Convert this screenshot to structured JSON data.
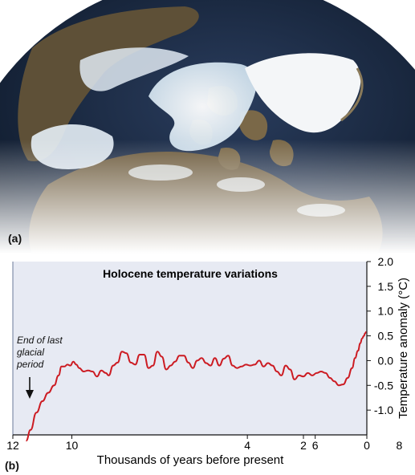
{
  "panel_a": {
    "label": "(a)"
  },
  "panel_b": {
    "label": "(b)"
  },
  "colors": {
    "ocean": "#1a2a44",
    "land": "#6b5a3c",
    "ice": "#eef3f8",
    "plot_bg": "#e7eaf3",
    "line": "#cc1b22"
  },
  "chart_data": {
    "type": "line",
    "title": "Holocene temperature variations",
    "xlabel": "Thousands of years before present",
    "ylabel": "Temperature anomaly (°C)",
    "x_reversed": true,
    "xlim": [
      12,
      0
    ],
    "ylim": [
      -1.5,
      2.0
    ],
    "x_ticks": [
      "12",
      "10",
      "4",
      "2",
      "6",
      "0",
      "8"
    ],
    "y_ticks": [
      "2.0",
      "1.5",
      "1.0",
      "0.5",
      "0.0",
      "-0.5",
      "-1.0"
    ],
    "annotation": {
      "text": [
        "End of last",
        "glacial",
        "period"
      ]
    },
    "series": [
      {
        "x": [
          11.55,
          11.4,
          11.2,
          11.0,
          10.8,
          10.6,
          10.45,
          10.35,
          10.25,
          10.15,
          10.05,
          9.95,
          9.85,
          9.75,
          9.6,
          9.45,
          9.3,
          9.15,
          9.0,
          8.85,
          8.75,
          8.6,
          8.45,
          8.3,
          8.15,
          8.0,
          7.85,
          7.7,
          7.55,
          7.4,
          7.25,
          7.1,
          6.95,
          6.8,
          6.65,
          6.5,
          6.35,
          6.2,
          6.05,
          5.9,
          5.75,
          5.6,
          5.45,
          5.3,
          5.15,
          5.0,
          4.85,
          4.7,
          4.55,
          4.4,
          4.25,
          4.1,
          3.95,
          3.8,
          3.65,
          3.5,
          3.35,
          3.2,
          3.05,
          2.9,
          2.75,
          2.6,
          2.45,
          2.3,
          2.15,
          2.0,
          1.85,
          1.7,
          1.55,
          1.4,
          1.25,
          1.1,
          0.95,
          0.8,
          0.65,
          0.5,
          0.4,
          0.3,
          0.22,
          0.16,
          0.1,
          0.06,
          0.02
        ],
        "y": [
          -1.62,
          -1.4,
          -1.05,
          -0.82,
          -0.65,
          -0.5,
          -0.3,
          -0.12,
          -0.12,
          -0.08,
          -0.1,
          -0.02,
          -0.08,
          -0.15,
          -0.22,
          -0.2,
          -0.22,
          -0.32,
          -0.2,
          -0.25,
          -0.3,
          -0.1,
          -0.04,
          0.18,
          0.15,
          -0.04,
          -0.08,
          0.12,
          0.12,
          -0.15,
          -0.1,
          0.18,
          0.08,
          -0.18,
          -0.1,
          -0.02,
          0.1,
          0.1,
          -0.04,
          -0.15,
          0.0,
          0.05,
          -0.05,
          -0.1,
          0.05,
          -0.1,
          0.04,
          0.1,
          -0.1,
          -0.15,
          -0.12,
          -0.08,
          -0.1,
          -0.08,
          0.0,
          -0.12,
          -0.05,
          -0.1,
          -0.22,
          -0.3,
          -0.1,
          -0.18,
          -0.38,
          -0.3,
          -0.32,
          -0.25,
          -0.3,
          -0.25,
          -0.22,
          -0.25,
          -0.35,
          -0.42,
          -0.5,
          -0.48,
          -0.35,
          -0.15,
          0.05,
          0.2,
          0.35,
          0.45,
          0.5,
          0.55,
          0.58
        ]
      }
    ]
  }
}
